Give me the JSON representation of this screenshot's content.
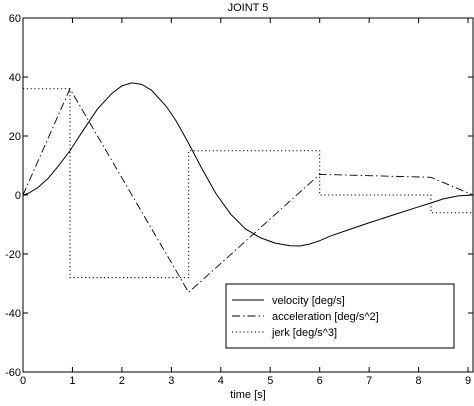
{
  "chart_data": {
    "type": "line",
    "title": "JOINT 5",
    "xlabel": "time [s]",
    "ylabel": "",
    "xlim": [
      0,
      9.1
    ],
    "ylim": [
      -60,
      60
    ],
    "xticks": [
      0,
      1,
      2,
      3,
      4,
      5,
      6,
      7,
      8,
      9
    ],
    "yticks": [
      -60,
      -40,
      -20,
      0,
      20,
      40,
      60
    ],
    "grid": false,
    "legend_position": "bottom-right",
    "series": [
      {
        "name": "velocity [deg/s]",
        "style": "solid",
        "color": "#000000",
        "x": [
          0,
          0.1,
          0.3,
          0.5,
          0.7,
          0.95,
          1.2,
          1.5,
          1.8,
          2.0,
          2.2,
          2.4,
          2.6,
          2.9,
          3.1,
          3.35,
          3.6,
          3.9,
          4.2,
          4.5,
          4.8,
          5.1,
          5.4,
          5.6,
          5.8,
          6.0,
          6.2,
          6.6,
          7.0,
          7.5,
          8.0,
          8.25,
          8.5,
          8.8,
          9.1
        ],
        "y": [
          0,
          0.5,
          2.5,
          5.5,
          9.5,
          15,
          21.5,
          29,
          34.5,
          37,
          38,
          37.5,
          35.5,
          30,
          25,
          17.5,
          9.5,
          0.5,
          -6.5,
          -11.5,
          -14.5,
          -16.3,
          -17.2,
          -17.3,
          -16.6,
          -15.5,
          -14,
          -11.7,
          -9.4,
          -6.7,
          -4,
          -2.7,
          -1.3,
          -0.3,
          0
        ]
      },
      {
        "name": "acceleration [deg/s^2]",
        "style": "dashdot",
        "color": "#000000",
        "x": [
          0,
          0.95,
          3.35,
          6.0,
          8.25,
          9.1
        ],
        "y": [
          0,
          36,
          -33,
          7,
          6,
          0
        ]
      },
      {
        "name": "jerk [deg/s^3]",
        "style": "dotted",
        "color": "#000000",
        "x": [
          0,
          0.95,
          0.95,
          3.35,
          3.35,
          6.0,
          6.0,
          8.25,
          8.25,
          9.1
        ],
        "y": [
          36,
          36,
          -28,
          -28,
          15,
          15,
          0,
          0,
          -6,
          -6
        ]
      }
    ]
  }
}
